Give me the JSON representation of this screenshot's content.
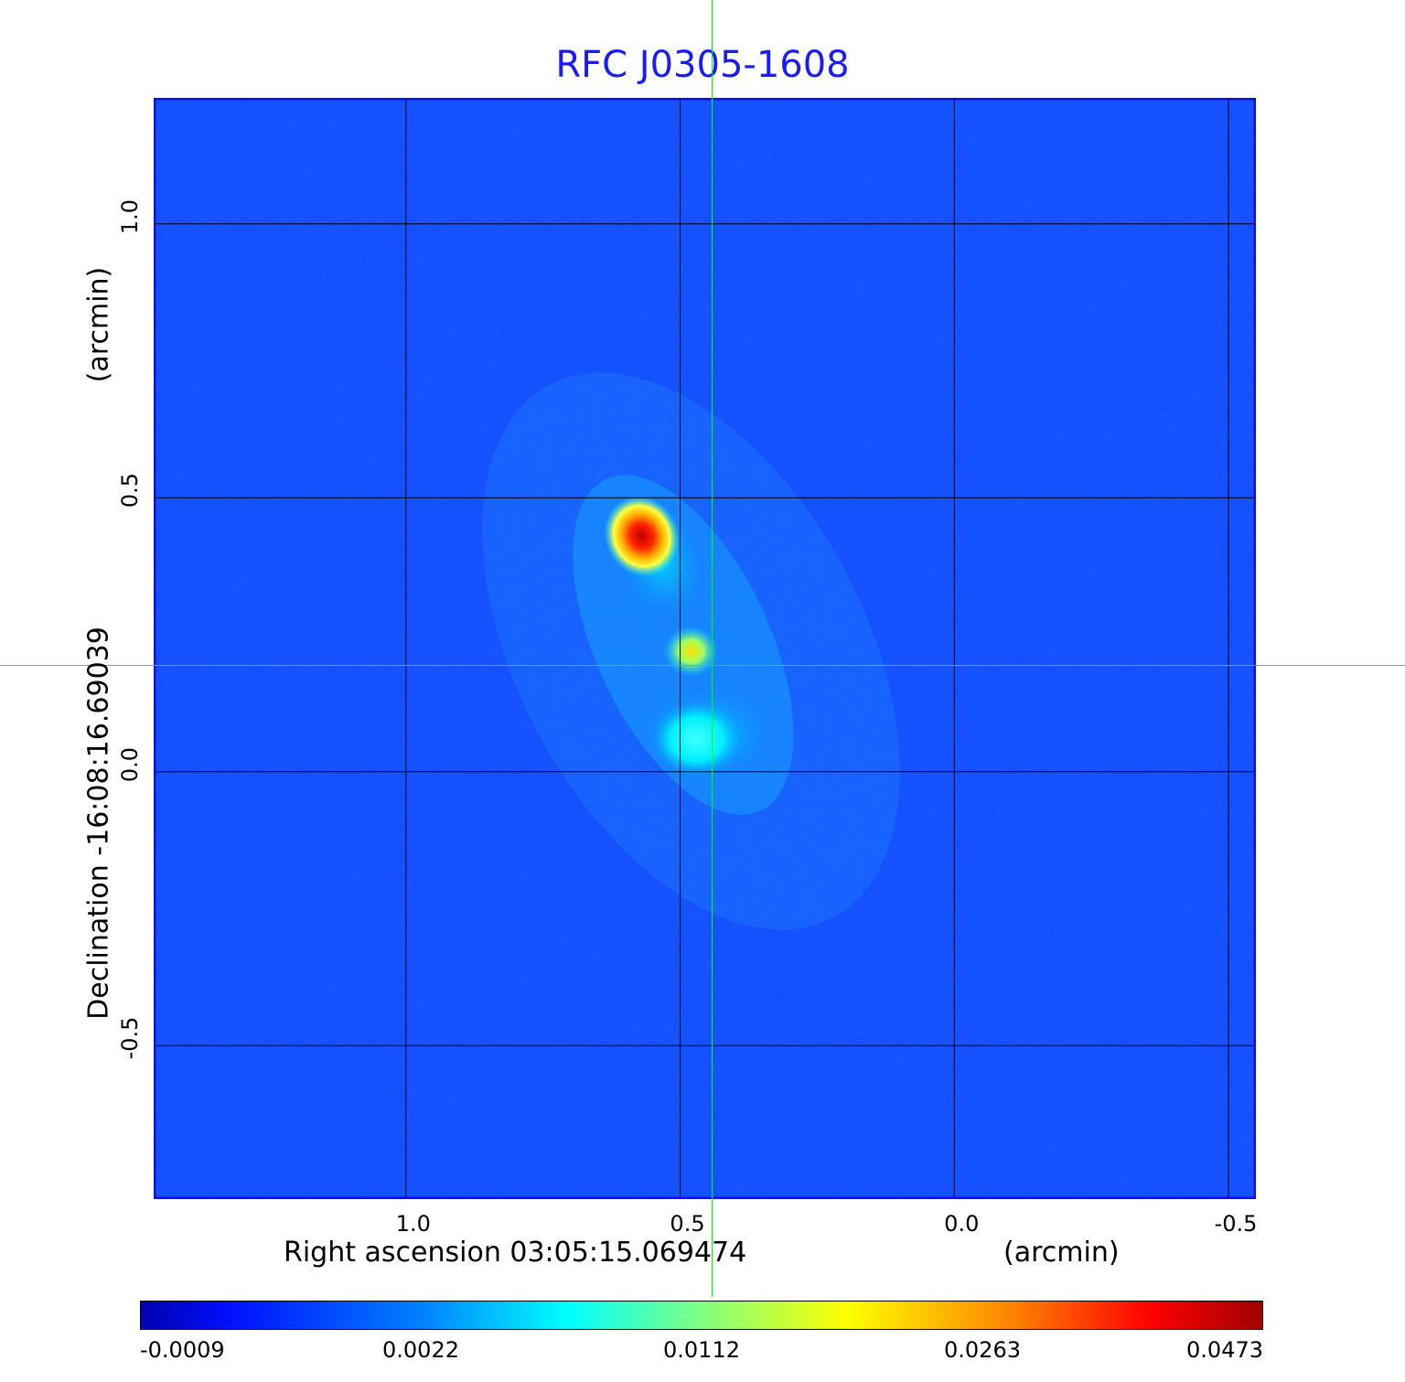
{
  "title": "RFC J0305-1608",
  "axes": {
    "x_label": "Right ascension  03:05:15.069474",
    "x_unit": "(arcmin)",
    "y_label": "Declination  -16:08:16.69039",
    "y_unit": "(arcmin)",
    "x_ticks": [
      "1.0",
      "0.5",
      "0.0",
      "-0.5"
    ],
    "y_ticks": [
      "1.0",
      "0.5",
      "0.0",
      "-0.5"
    ],
    "x_range_arcmin": [
      1.46,
      -0.55
    ],
    "y_range_arcmin": [
      -0.78,
      1.23
    ]
  },
  "colorbar": {
    "colormap": "jet",
    "ticks": [
      "-0.0009",
      "0.0022",
      "0.0112",
      "0.0263",
      "0.0473"
    ]
  },
  "colors": {
    "title": "#1a1aff",
    "crosshair": "#00ff00",
    "grid": "#000000",
    "frame": "#1010e0"
  },
  "sources": [
    {
      "ra_arcmin": 0.57,
      "dec_arcmin": 0.43,
      "level": 1.0
    },
    {
      "ra_arcmin": 0.48,
      "dec_arcmin": 0.22,
      "level": 0.55
    },
    {
      "ra_arcmin": 0.47,
      "dec_arcmin": 0.06,
      "level": 0.35
    }
  ]
}
